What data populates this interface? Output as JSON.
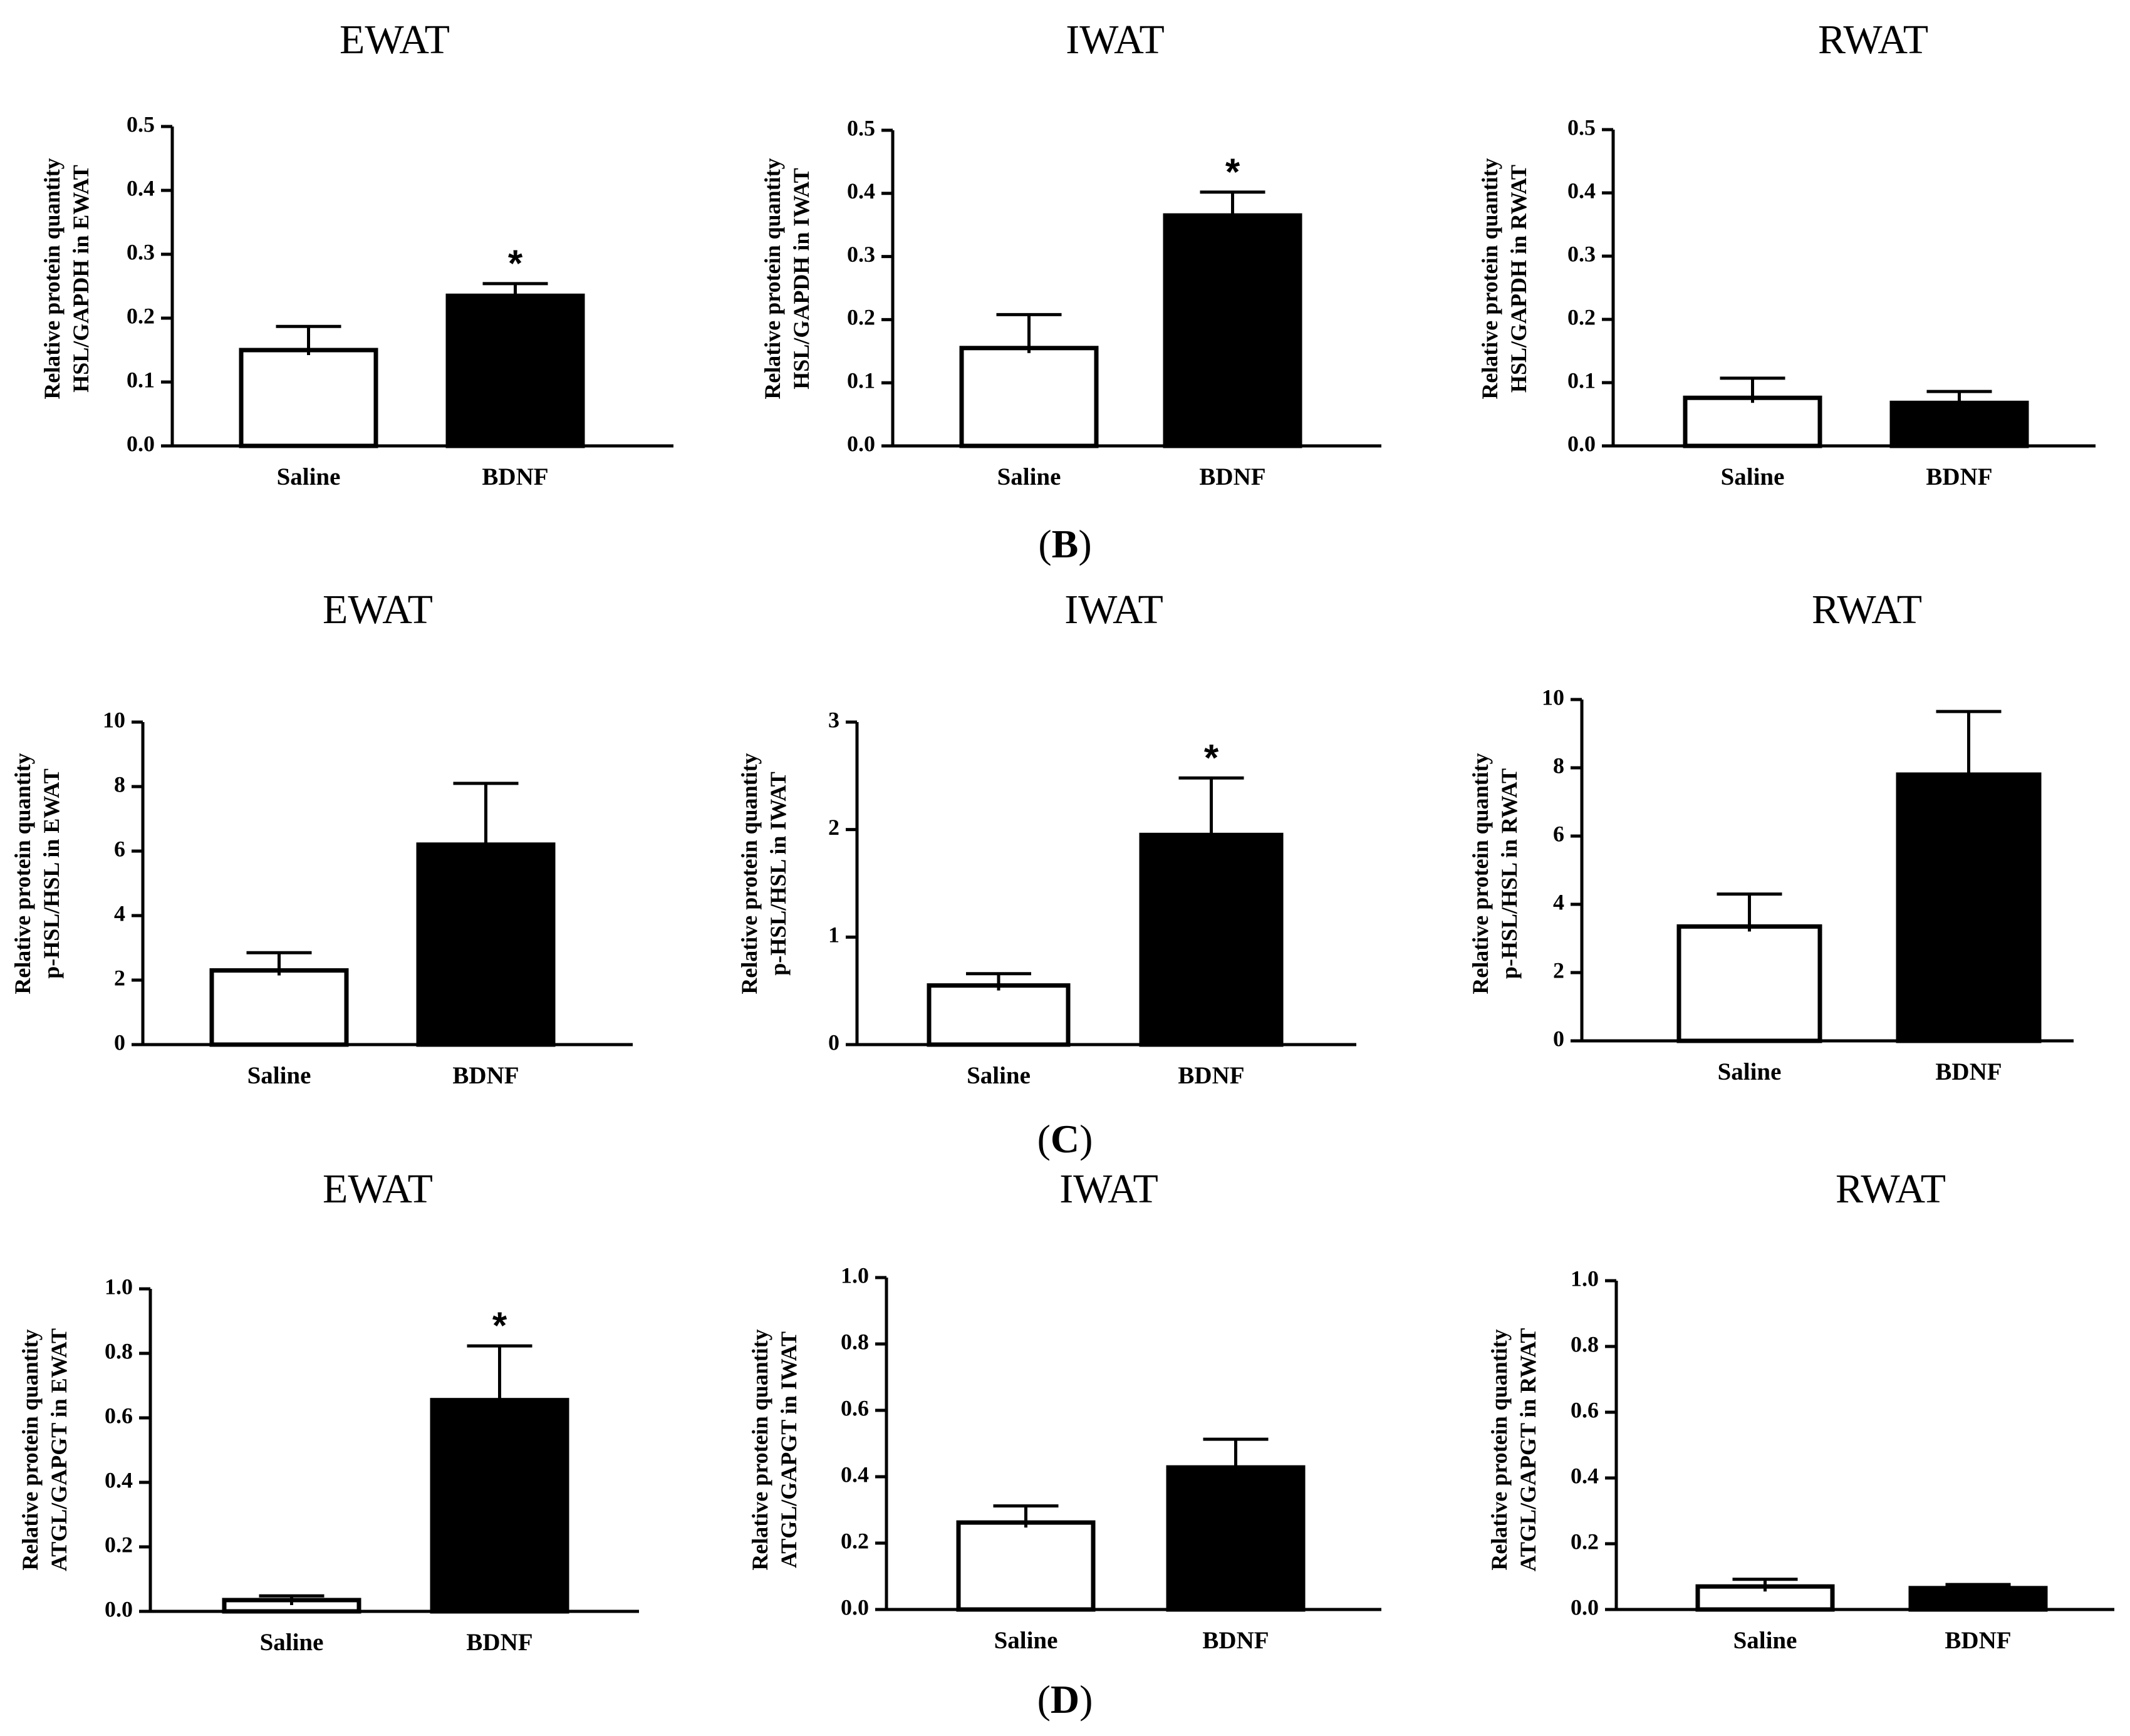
{
  "figure": {
    "panel_labels": [
      {
        "open": "(",
        "letter": "B",
        "close": ")"
      },
      {
        "open": "(",
        "letter": "C",
        "close": ")"
      },
      {
        "open": "(",
        "letter": "D",
        "close": ")"
      }
    ]
  },
  "chart_data": [
    {
      "type": "bar",
      "title": "EWAT",
      "ylabel": [
        "Relative protein quantity",
        "HSL/GAPDH in EWAT"
      ],
      "categories": [
        "Saline",
        "BDNF"
      ],
      "values": [
        0.15,
        0.235
      ],
      "errors": [
        0.037,
        0.019
      ],
      "significance": [
        "",
        "*"
      ],
      "ylim": [
        0,
        0.5
      ],
      "yticks": [
        "0.0",
        "0.1",
        "0.2",
        "0.3",
        "0.4",
        "0.5"
      ],
      "bar_colors": [
        "#ffffff",
        "#000000"
      ]
    },
    {
      "type": "bar",
      "title": "IWAT",
      "ylabel": [
        "Relative protein quantity",
        "HSL/GAPDH in IWAT"
      ],
      "categories": [
        "Saline",
        "BDNF"
      ],
      "values": [
        0.155,
        0.365
      ],
      "errors": [
        0.053,
        0.037
      ],
      "significance": [
        "",
        "*"
      ],
      "ylim": [
        0,
        0.5
      ],
      "yticks": [
        "0.0",
        "0.1",
        "0.2",
        "0.3",
        "0.4",
        "0.5"
      ],
      "bar_colors": [
        "#ffffff",
        "#000000"
      ]
    },
    {
      "type": "bar",
      "title": "RWAT",
      "ylabel": [
        "Relative protein quantity",
        "HSL/GAPDH in RWAT"
      ],
      "categories": [
        "Saline",
        "BDNF"
      ],
      "values": [
        0.076,
        0.068
      ],
      "errors": [
        0.031,
        0.018
      ],
      "significance": [
        "",
        ""
      ],
      "ylim": [
        0,
        0.5
      ],
      "yticks": [
        "0.0",
        "0.1",
        "0.2",
        "0.3",
        "0.4",
        "0.5"
      ],
      "bar_colors": [
        "#ffffff",
        "#000000"
      ]
    },
    {
      "type": "bar",
      "title": "EWAT",
      "ylabel": [
        "Relative protein quantity",
        "p-HSL/HSL in EWAT"
      ],
      "categories": [
        "Saline",
        "BDNF"
      ],
      "values": [
        2.3,
        6.2
      ],
      "errors": [
        0.55,
        1.9
      ],
      "significance": [
        "",
        ""
      ],
      "ylim": [
        0,
        10
      ],
      "yticks": [
        "0",
        "2",
        "4",
        "6",
        "8",
        "10"
      ],
      "bar_colors": [
        "#ffffff",
        "#000000"
      ]
    },
    {
      "type": "bar",
      "title": "IWAT",
      "ylabel": [
        "Relative protein quantity",
        "p-HSL/HSL in IWAT"
      ],
      "categories": [
        "Saline",
        "BDNF"
      ],
      "values": [
        0.55,
        1.95
      ],
      "errors": [
        0.11,
        0.53
      ],
      "significance": [
        "",
        "*"
      ],
      "ylim": [
        0,
        3
      ],
      "yticks": [
        "0",
        "1",
        "2",
        "3"
      ],
      "bar_colors": [
        "#ffffff",
        "#000000"
      ]
    },
    {
      "type": "bar",
      "title": "RWAT",
      "ylabel": [
        "Relative protein quantity",
        "p-HSL/HSL in RWAT"
      ],
      "categories": [
        "Saline",
        "BDNF"
      ],
      "values": [
        3.35,
        7.8
      ],
      "errors": [
        0.95,
        1.85
      ],
      "significance": [
        "",
        ""
      ],
      "ylim": [
        0,
        10
      ],
      "yticks": [
        "0",
        "2",
        "4",
        "6",
        "8",
        "10"
      ],
      "bar_colors": [
        "#ffffff",
        "#000000"
      ]
    },
    {
      "type": "bar",
      "title": "EWAT",
      "ylabel": [
        "Relative protein quantity",
        "ATGL/GAPGT in EWAT"
      ],
      "categories": [
        "Saline",
        "BDNF"
      ],
      "values": [
        0.035,
        0.655
      ],
      "errors": [
        0.013,
        0.168
      ],
      "significance": [
        "",
        "*"
      ],
      "ylim": [
        0,
        1.0
      ],
      "yticks": [
        "0.0",
        "0.2",
        "0.4",
        "0.6",
        "0.8",
        "1.0"
      ],
      "bar_colors": [
        "#ffffff",
        "#000000"
      ]
    },
    {
      "type": "bar",
      "title": "IWAT",
      "ylabel": [
        "Relative protein quantity",
        "ATGL/GAPGT in IWAT"
      ],
      "categories": [
        "Saline",
        "BDNF"
      ],
      "values": [
        0.262,
        0.428
      ],
      "errors": [
        0.05,
        0.085
      ],
      "significance": [
        "",
        ""
      ],
      "ylim": [
        0,
        1.0
      ],
      "yticks": [
        "0.0",
        "0.2",
        "0.4",
        "0.6",
        "0.8",
        "1.0"
      ],
      "bar_colors": [
        "#ffffff",
        "#000000"
      ]
    },
    {
      "type": "bar",
      "title": "RWAT",
      "ylabel": [
        "Relative protein quantity",
        "ATGL/GAPGT in RWAT"
      ],
      "categories": [
        "Saline",
        "BDNF"
      ],
      "values": [
        0.07,
        0.065
      ],
      "errors": [
        0.022,
        0.011
      ],
      "significance": [
        "",
        ""
      ],
      "ylim": [
        0,
        1.0
      ],
      "yticks": [
        "0.0",
        "0.2",
        "0.4",
        "0.6",
        "0.8",
        "1.0"
      ],
      "bar_colors": [
        "#ffffff",
        "#000000"
      ]
    }
  ]
}
